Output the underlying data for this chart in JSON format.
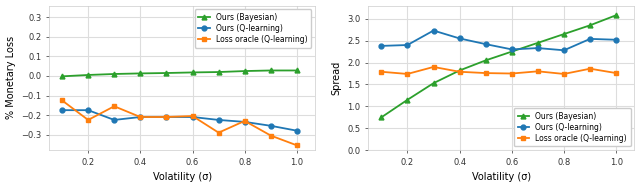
{
  "x": [
    0.1,
    0.2,
    0.3,
    0.4,
    0.5,
    0.6,
    0.7,
    0.8,
    0.9,
    1.0
  ],
  "left": {
    "bayesian": [
      -0.002,
      0.005,
      0.01,
      0.013,
      0.015,
      0.018,
      0.02,
      0.025,
      0.028,
      0.028
    ],
    "qlearning": [
      -0.175,
      -0.175,
      -0.225,
      -0.21,
      -0.21,
      -0.21,
      -0.225,
      -0.235,
      -0.255,
      -0.28
    ],
    "oracle": [
      -0.125,
      -0.225,
      -0.155,
      -0.21,
      -0.21,
      -0.205,
      -0.29,
      -0.23,
      -0.305,
      -0.355
    ],
    "ylabel": "% Monetary Loss",
    "xlabel": "Volatility (σ)",
    "ylim": [
      -0.38,
      0.36
    ],
    "yticks": [
      -0.3,
      -0.2,
      -0.1,
      0.0,
      0.1,
      0.2,
      0.3
    ]
  },
  "right": {
    "bayesian": [
      0.75,
      1.15,
      1.53,
      1.82,
      2.05,
      2.25,
      2.45,
      2.65,
      2.85,
      3.08
    ],
    "qlearning": [
      2.38,
      2.4,
      2.73,
      2.55,
      2.42,
      2.3,
      2.33,
      2.28,
      2.54,
      2.52
    ],
    "oracle": [
      1.79,
      1.74,
      1.9,
      1.79,
      1.76,
      1.75,
      1.8,
      1.74,
      1.86,
      1.76
    ],
    "ylabel": "Spread",
    "xlabel": "Volatility (σ)",
    "ylim": [
      0.0,
      3.3
    ],
    "yticks": [
      0.0,
      0.5,
      1.0,
      1.5,
      2.0,
      2.5,
      3.0
    ]
  },
  "colors": {
    "bayesian": "#2ca02c",
    "qlearning": "#1f77b4",
    "oracle": "#ff7f0e"
  },
  "legend": {
    "bayesian": "Ours (Bayesian)",
    "qlearning": "Ours (Q-learning)",
    "oracle": "Loss oracle (Q-learning)"
  },
  "marker_bayesian": "^",
  "marker_qlearning": "o",
  "marker_oracle": "s",
  "markersize": 3.5,
  "linewidth": 1.3,
  "bg_color": "#ffffff",
  "plot_bg_color": "#ffffff",
  "grid_color": "#dddddd"
}
